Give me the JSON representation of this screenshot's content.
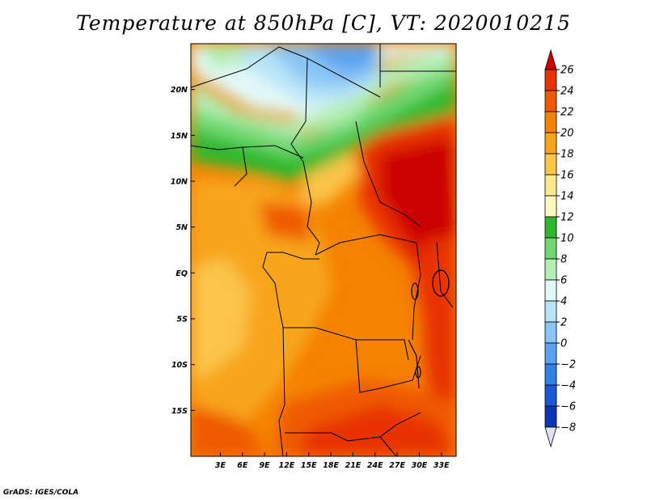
{
  "title": "Temperature at 850hPa [C], VT: 2020010215",
  "credit": "GrADS: IGES/COLA",
  "map": {
    "lon_range": [
      -1,
      35
    ],
    "lat_range": [
      -20,
      25
    ],
    "lon_ticks": [
      {
        "value": 3,
        "label": "3E"
      },
      {
        "value": 6,
        "label": "6E"
      },
      {
        "value": 9,
        "label": "9E"
      },
      {
        "value": 12,
        "label": "12E"
      },
      {
        "value": 15,
        "label": "15E"
      },
      {
        "value": 18,
        "label": "18E"
      },
      {
        "value": 21,
        "label": "21E"
      },
      {
        "value": 24,
        "label": "24E"
      },
      {
        "value": 27,
        "label": "27E"
      },
      {
        "value": 30,
        "label": "30E"
      },
      {
        "value": 33,
        "label": "33E"
      }
    ],
    "lat_ticks": [
      {
        "value": 20,
        "label": "20N"
      },
      {
        "value": 15,
        "label": "15N"
      },
      {
        "value": 10,
        "label": "10N"
      },
      {
        "value": 5,
        "label": "5N"
      },
      {
        "value": 0,
        "label": "EQ"
      },
      {
        "value": -5,
        "label": "5S"
      },
      {
        "value": -10,
        "label": "10S"
      },
      {
        "value": -15,
        "label": "15S"
      }
    ]
  },
  "colorbar": {
    "levels": [
      26,
      24,
      22,
      20,
      18,
      16,
      14,
      12,
      10,
      8,
      6,
      4,
      2,
      0,
      -2,
      -4,
      -6,
      -8
    ],
    "labels": [
      "26",
      "24",
      "22",
      "20",
      "18",
      "16",
      "14",
      "12",
      "10",
      "8",
      "6",
      "4",
      "2",
      "0",
      "−2",
      "−4",
      "−6",
      "−8"
    ],
    "colors": [
      "#cc0000",
      "#e83200",
      "#ef5a00",
      "#f58200",
      "#f8a51e",
      "#fbc54a",
      "#fde890",
      "#fff9c0",
      "#2fb82f",
      "#6fd86f",
      "#b5eeb5",
      "#e2f8f8",
      "#b8e4f8",
      "#88c4f5",
      "#5aa2f0",
      "#3280e8",
      "#1a58d8",
      "#0c36b8",
      "#051c7a",
      "#e0e0f5"
    ]
  }
}
